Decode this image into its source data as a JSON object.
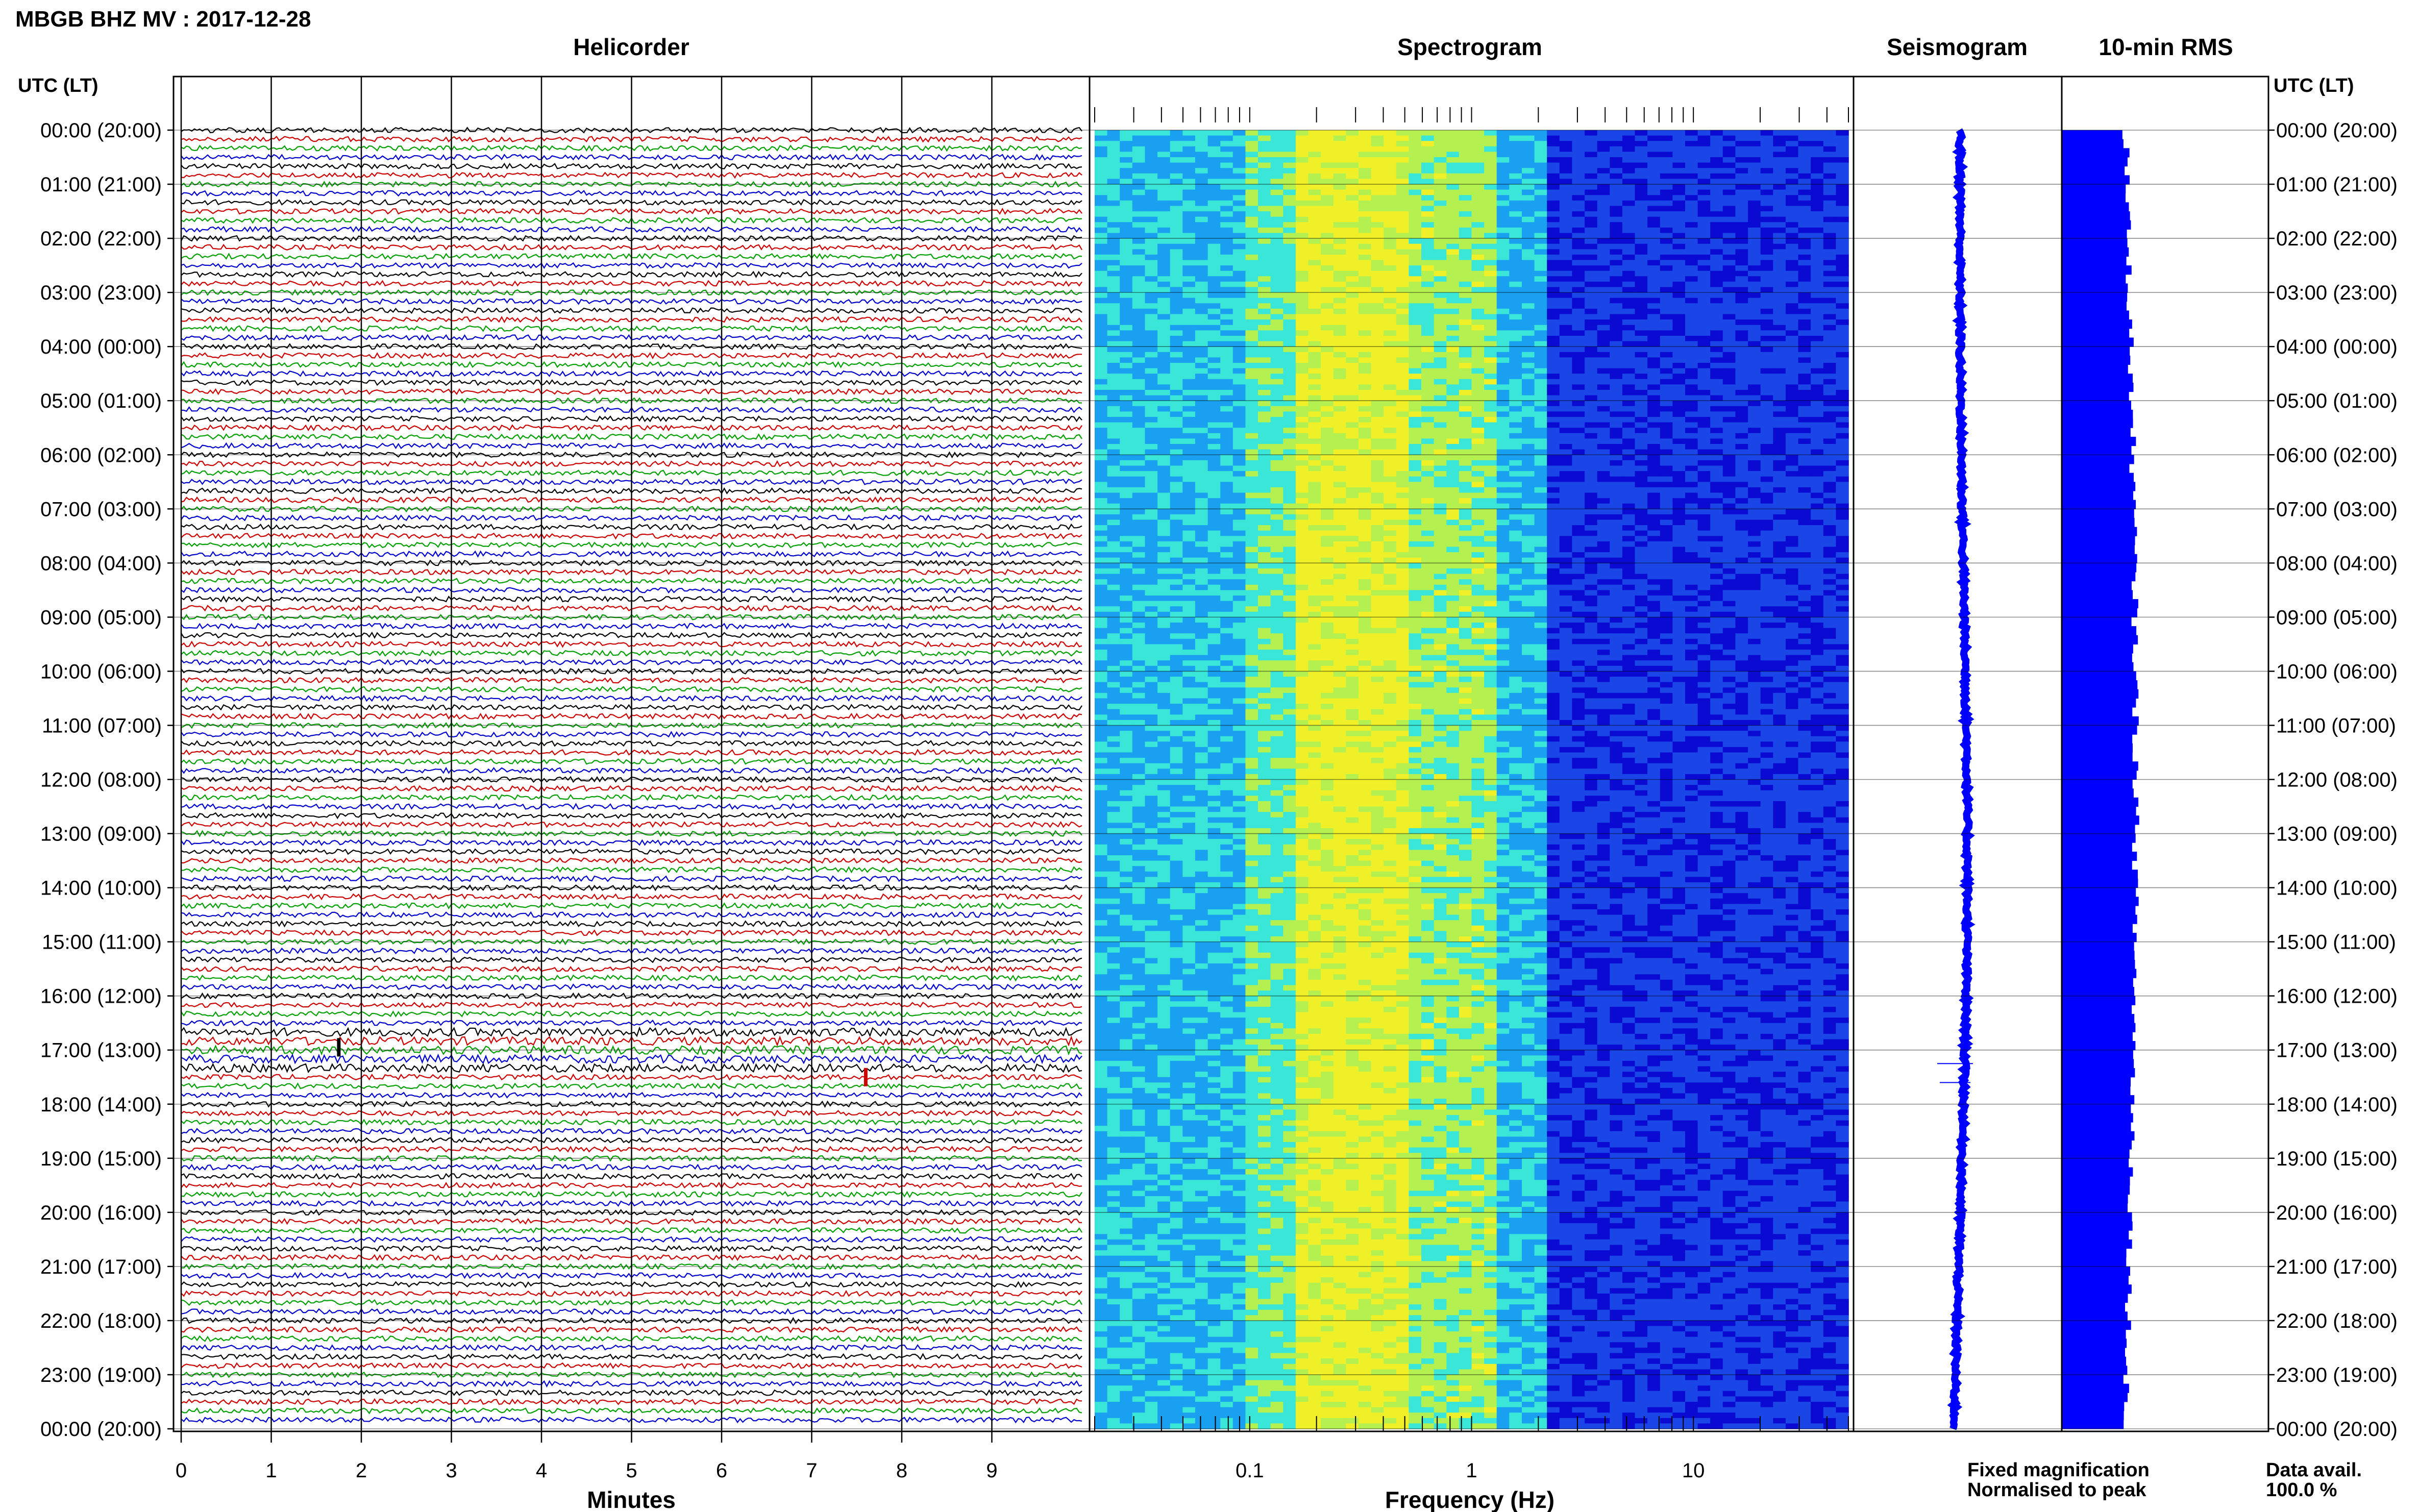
{
  "page_title": "MBGB BHZ MV : 2017-12-28",
  "left_header": "UTC (LT)",
  "right_header": "UTC (LT)",
  "time_labels": [
    "00:00 (20:00)",
    "01:00 (21:00)",
    "02:00 (22:00)",
    "03:00 (23:00)",
    "04:00 (00:00)",
    "05:00 (01:00)",
    "06:00 (02:00)",
    "07:00 (03:00)",
    "08:00 (04:00)",
    "09:00 (05:00)",
    "10:00 (06:00)",
    "11:00 (07:00)",
    "12:00 (08:00)",
    "13:00 (09:00)",
    "14:00 (10:00)",
    "15:00 (11:00)",
    "16:00 (12:00)",
    "17:00 (13:00)",
    "18:00 (14:00)",
    "19:00 (15:00)",
    "20:00 (16:00)",
    "21:00 (17:00)",
    "22:00 (18:00)",
    "23:00 (19:00)",
    "00:00 (20:00)"
  ],
  "legend": {
    "fixed": "Fixed magnification",
    "fixed_color": "#0000ff",
    "normalised": "Normalised to peak",
    "normalised_color": "#ff0000"
  },
  "data_avail": {
    "label": "Data avail.",
    "value": "100.0 %"
  },
  "chart_data": [
    {
      "type": "line",
      "title": "Helicorder",
      "xlabel": "Minutes",
      "x_ticks": [
        "0",
        "1",
        "2",
        "3",
        "4",
        "5",
        "6",
        "7",
        "8",
        "9"
      ],
      "xlim": [
        0,
        10
      ],
      "rows_per_hour": 6,
      "hours": 24,
      "trace_colors": [
        "#000000",
        "#cc0000",
        "#00a000",
        "#0000cc"
      ],
      "events": [
        {
          "row_hour": 16.95,
          "minute": 1.75,
          "color": "#000000"
        },
        {
          "row_hour": 17.5,
          "minute": 7.6,
          "color": "#cc0000"
        }
      ]
    },
    {
      "type": "heatmap",
      "title": "Spectrogram",
      "xlabel": "Frequency (Hz)",
      "x_scale": "log",
      "xlim": [
        0.02,
        50
      ],
      "x_tick_labels": [
        "0.1",
        "1",
        "10"
      ],
      "ylim_hours": [
        0,
        24
      ],
      "colormap": [
        "#0a0ad2",
        "#1a46e8",
        "#1aa0f0",
        "#3ae6d8",
        "#b4f050",
        "#f0f028"
      ]
    },
    {
      "type": "line",
      "title": "Seismogram",
      "ylim_hours": [
        0,
        24
      ]
    },
    {
      "type": "bar",
      "title": "10-min RMS",
      "orientation": "horizontal",
      "bar_color": "#0000ff",
      "ylim_hours": [
        0,
        24
      ]
    }
  ]
}
